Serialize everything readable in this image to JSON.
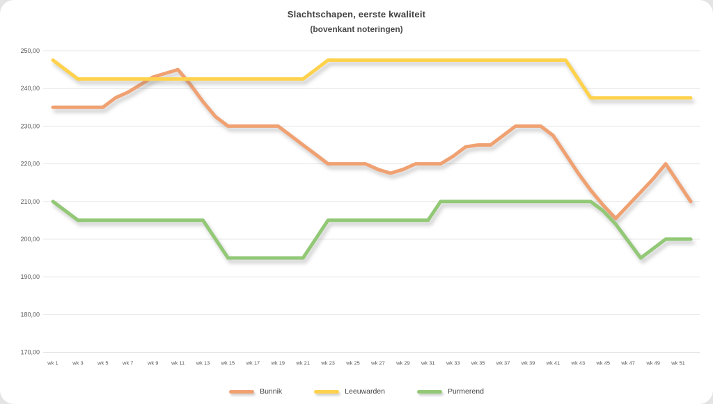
{
  "page": {
    "background": "#e4e4e4",
    "panel_background": "#ffffff"
  },
  "chart_data": {
    "type": "line",
    "title": "Slachtschapen, eerste kwaliteit",
    "subtitle": "(bovenkant noteringen)",
    "x": [
      "wk 1",
      "wk 2",
      "wk 3",
      "wk 4",
      "wk 5",
      "wk 6",
      "wk 7",
      "wk 8",
      "wk 9",
      "wk 10",
      "wk 11",
      "wk 12",
      "wk 13",
      "wk 14",
      "wk 15",
      "wk 16",
      "wk 17",
      "wk 18",
      "wk 19",
      "wk 20",
      "wk 21",
      "wk 22",
      "wk 23",
      "wk 24",
      "wk 25",
      "wk 26",
      "wk 27",
      "wk 28",
      "wk 29",
      "wk 30",
      "wk 31",
      "wk 32",
      "wk 33",
      "wk 34",
      "wk 35",
      "wk 36",
      "wk 37",
      "wk 38",
      "wk 39",
      "wk 40",
      "wk 41",
      "wk 42",
      "wk 43",
      "wk 44",
      "wk 45",
      "wk 46",
      "wk 47",
      "wk 48",
      "wk 49",
      "wk 50",
      "wk 51",
      "wk 52"
    ],
    "x_tick_labels": [
      "wk 1",
      "wk 3",
      "wk 5",
      "wk 7",
      "wk 9",
      "wk 11",
      "wk 13",
      "wk 15",
      "wk 17",
      "wk 19",
      "wk 21",
      "wk 23",
      "wk 25",
      "wk 27",
      "wk 29",
      "wk 31",
      "wk 33",
      "wk 35",
      "wk 37",
      "wk 39",
      "wk 41",
      "wk 43",
      "wk 45",
      "wk 47",
      "wk 49",
      "wk 51"
    ],
    "ylim": [
      170,
      250
    ],
    "y_ticks": [
      250,
      240,
      230,
      220,
      210,
      200,
      190,
      180,
      170
    ],
    "y_tick_labels": [
      "250,00",
      "240,00",
      "230,00",
      "220,00",
      "210,00",
      "200,00",
      "190,00",
      "180,00",
      "170,00"
    ],
    "grid": "horizontal",
    "legend_position": "bottom",
    "series": [
      {
        "name": "Bunnik",
        "color": "#f0a172",
        "values": [
          235,
          235,
          235,
          235,
          235,
          237.5,
          239,
          241,
          243,
          244,
          245,
          241,
          236.5,
          232.5,
          230,
          230,
          230,
          230,
          230,
          227.5,
          225,
          222.5,
          220,
          220,
          220,
          220,
          218.5,
          217.5,
          218.5,
          220,
          220,
          220,
          222,
          224.5,
          225,
          225,
          227.5,
          230,
          230,
          230,
          227.5,
          222.5,
          217.5,
          213,
          209,
          205.5,
          209,
          212.5,
          216,
          220,
          215,
          210
        ]
      },
      {
        "name": "Leeuwarden",
        "color": "#ffd24d",
        "values": [
          247.5,
          245,
          242.5,
          242.5,
          242.5,
          242.5,
          242.5,
          242.5,
          242.5,
          242.5,
          242.5,
          242.5,
          242.5,
          242.5,
          242.5,
          242.5,
          242.5,
          242.5,
          242.5,
          242.5,
          242.5,
          245,
          247.5,
          247.5,
          247.5,
          247.5,
          247.5,
          247.5,
          247.5,
          247.5,
          247.5,
          247.5,
          247.5,
          247.5,
          247.5,
          247.5,
          247.5,
          247.5,
          247.5,
          247.5,
          247.5,
          247.5,
          242.5,
          237.5,
          237.5,
          237.5,
          237.5,
          237.5,
          237.5,
          237.5,
          237.5,
          237.5
        ]
      },
      {
        "name": "Purmerend",
        "color": "#92c876",
        "values": [
          210,
          207.5,
          205,
          205,
          205,
          205,
          205,
          205,
          205,
          205,
          205,
          205,
          205,
          200,
          195,
          195,
          195,
          195,
          195,
          195,
          195,
          200,
          205,
          205,
          205,
          205,
          205,
          205,
          205,
          205,
          205,
          210,
          210,
          210,
          210,
          210,
          210,
          210,
          210,
          210,
          210,
          210,
          210,
          210,
          207.5,
          204,
          199.5,
          195,
          197.5,
          200,
          200,
          200
        ]
      }
    ]
  }
}
